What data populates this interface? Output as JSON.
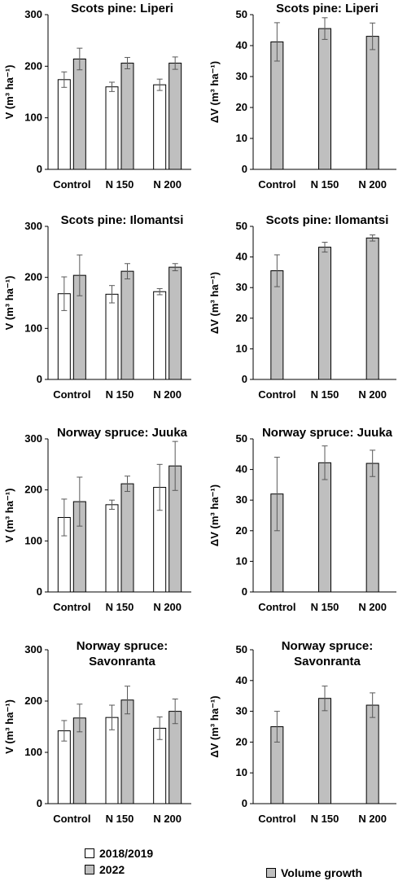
{
  "chart_data": [
    {
      "type": "bar",
      "title": [
        "Scots pine: Liperi"
      ],
      "ylabel": "V (m³ ha⁻¹)",
      "categories": [
        "Control",
        "N 150",
        "N 200"
      ],
      "ylim": [
        0,
        300
      ],
      "yticks": [
        0,
        100,
        200,
        300
      ],
      "series": [
        {
          "name": "2018/2019",
          "values": [
            174,
            160,
            164
          ],
          "errors": [
            15,
            9,
            11
          ],
          "color": "#ffffff"
        },
        {
          "name": "2022",
          "values": [
            214,
            206,
            206
          ],
          "errors": [
            21,
            11,
            12
          ],
          "color": "#bfbfbf"
        }
      ]
    },
    {
      "type": "bar",
      "title": [
        "Scots pine: Liperi"
      ],
      "ylabel": "ΔV (m³ ha⁻¹)",
      "categories": [
        "Control",
        "N 150",
        "N 200"
      ],
      "ylim": [
        0,
        50
      ],
      "yticks": [
        0,
        10,
        20,
        30,
        40,
        50
      ],
      "series": [
        {
          "name": "Volume growth",
          "values": [
            41.2,
            45.5,
            43.0
          ],
          "errors": [
            6.2,
            3.5,
            4.3
          ],
          "color": "#bfbfbf"
        }
      ]
    },
    {
      "type": "bar",
      "title": [
        "Scots pine: Ilomantsi"
      ],
      "ylabel": "V (m³ ha⁻¹)",
      "categories": [
        "Control",
        "N 150",
        "N 200"
      ],
      "ylim": [
        0,
        300
      ],
      "yticks": [
        0,
        100,
        200,
        300
      ],
      "series": [
        {
          "name": "2018/2019",
          "values": [
            168,
            167,
            172
          ],
          "errors": [
            33,
            17,
            6
          ],
          "color": "#ffffff"
        },
        {
          "name": "2022",
          "values": [
            204,
            212,
            220
          ],
          "errors": [
            40,
            15,
            7
          ],
          "color": "#bfbfbf"
        }
      ]
    },
    {
      "type": "bar",
      "title": [
        "Scots pine: Ilomantsi"
      ],
      "ylabel": "ΔV (m³ ha⁻¹)",
      "categories": [
        "Control",
        "N 150",
        "N 200"
      ],
      "ylim": [
        0,
        50
      ],
      "yticks": [
        0,
        10,
        20,
        30,
        40,
        50
      ],
      "series": [
        {
          "name": "Volume growth",
          "values": [
            35.5,
            43.2,
            46.2
          ],
          "errors": [
            5.2,
            1.6,
            1.0
          ],
          "color": "#bfbfbf"
        }
      ]
    },
    {
      "type": "bar",
      "title": [
        "Norway spruce: Juuka"
      ],
      "ylabel": "V (m³ ha⁻¹)",
      "categories": [
        "Control",
        "N 150",
        "N 200"
      ],
      "ylim": [
        0,
        300
      ],
      "yticks": [
        0,
        100,
        200,
        300
      ],
      "series": [
        {
          "name": "2018/2019",
          "values": [
            146,
            171,
            205
          ],
          "errors": [
            36,
            9,
            45
          ],
          "color": "#ffffff"
        },
        {
          "name": "2022",
          "values": [
            177,
            212,
            247
          ],
          "errors": [
            48,
            15,
            48
          ],
          "color": "#bfbfbf"
        }
      ]
    },
    {
      "type": "bar",
      "title": [
        "Norway spruce: Juuka"
      ],
      "ylabel": "ΔV (m³ ha⁻¹)",
      "categories": [
        "Control",
        "N 150",
        "N 200"
      ],
      "ylim": [
        0,
        50
      ],
      "yticks": [
        0,
        10,
        20,
        30,
        40,
        50
      ],
      "series": [
        {
          "name": "Volume growth",
          "values": [
            32,
            42.2,
            42
          ],
          "errors": [
            12,
            5.5,
            4.3
          ],
          "color": "#bfbfbf"
        }
      ]
    },
    {
      "type": "bar",
      "title": [
        "Norway spruce:",
        "Savonranta"
      ],
      "ylabel": "V (m³ ha⁻¹)",
      "categories": [
        "Control",
        "N 150",
        "N 200"
      ],
      "ylim": [
        0,
        300
      ],
      "yticks": [
        0,
        100,
        200,
        300
      ],
      "series": [
        {
          "name": "2018/2019",
          "values": [
            142,
            168,
            147
          ],
          "errors": [
            20,
            24,
            22
          ],
          "color": "#ffffff"
        },
        {
          "name": "2022",
          "values": [
            167,
            202,
            180
          ],
          "errors": [
            27,
            27,
            24
          ],
          "color": "#bfbfbf"
        }
      ]
    },
    {
      "type": "bar",
      "title": [
        "Norway spruce:",
        "Savonranta"
      ],
      "ylabel": "ΔV (m³ ha⁻¹)",
      "categories": [
        "Control",
        "N 150",
        "N 200"
      ],
      "ylim": [
        0,
        50
      ],
      "yticks": [
        0,
        10,
        20,
        30,
        40,
        50
      ],
      "series": [
        {
          "name": "Volume growth",
          "values": [
            25,
            34.2,
            32
          ],
          "errors": [
            5,
            4,
            4
          ],
          "color": "#bfbfbf"
        }
      ]
    }
  ],
  "legend": {
    "left": [
      {
        "label": "2018/2019",
        "color": "#ffffff"
      },
      {
        "label": "2022",
        "color": "#bfbfbf"
      }
    ],
    "right": [
      {
        "label": "Volume growth",
        "color": "#bfbfbf"
      }
    ]
  }
}
